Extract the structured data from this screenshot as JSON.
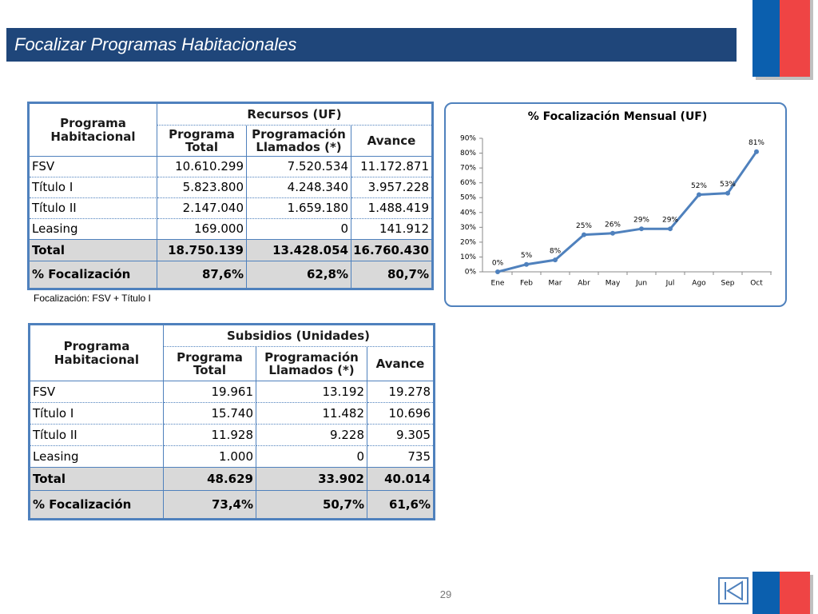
{
  "title": "Focalizar Programas Habitacionales",
  "table1": {
    "stub": "Programa Habitacional",
    "group": "Recursos (UF)",
    "columns": [
      "Programa Total",
      "Programación Llamados (*)",
      "Avance"
    ],
    "rows": [
      [
        "FSV",
        "10.610.299",
        "7.520.534",
        "11.172.871"
      ],
      [
        "Título I",
        "5.823.800",
        "4.248.340",
        "3.957.228"
      ],
      [
        "Título II",
        "2.147.040",
        "1.659.180",
        "1.488.419"
      ],
      [
        "Leasing",
        "169.000",
        "0",
        "141.912"
      ],
      [
        "Total",
        "18.750.139",
        "13.428.054",
        "16.760.430"
      ],
      [
        "% Focalización",
        "87,6%",
        "62,8%",
        "80,7%"
      ]
    ]
  },
  "note": "Focalización: FSV + Título I",
  "table2": {
    "stub": "Programa Habitacional",
    "group": "Subsidios (Unidades)",
    "columns": [
      "Programa Total",
      "Programación Llamados (*)",
      "Avance"
    ],
    "rows": [
      [
        "FSV",
        "19.961",
        "13.192",
        "19.278"
      ],
      [
        "Título I",
        "15.740",
        "11.482",
        "10.696"
      ],
      [
        "Título II",
        "11.928",
        "9.228",
        "9.305"
      ],
      [
        "Leasing",
        "1.000",
        "0",
        "735"
      ],
      [
        "Total",
        "48.629",
        "33.902",
        "40.014"
      ],
      [
        "% Focalización",
        "73,4%",
        "50,7%",
        "61,6%"
      ]
    ]
  },
  "chart_data": {
    "type": "line",
    "title": "% Focalización Mensual (UF)",
    "categories": [
      "Ene",
      "Feb",
      "Mar",
      "Abr",
      "May",
      "Jun",
      "Jul",
      "Ago",
      "Sep",
      "Oct"
    ],
    "values": [
      0,
      5,
      8,
      25,
      26,
      29,
      29,
      52,
      53,
      81
    ],
    "value_labels": [
      "0%",
      "5%",
      "8%",
      "25%",
      "26%",
      "29%",
      "29%",
      "52%",
      "53%",
      "81%"
    ],
    "color": "#4f81bd",
    "ylim": [
      0,
      90
    ],
    "yticks": [
      {
        "value": 0,
        "label": "0%"
      },
      {
        "value": 10,
        "label": "10%"
      },
      {
        "value": 20,
        "label": "20%"
      },
      {
        "value": 30,
        "label": "30%"
      },
      {
        "value": 40,
        "label": "40%"
      },
      {
        "value": 50,
        "label": "50%"
      },
      {
        "value": 60,
        "label": "60%"
      },
      {
        "value": 70,
        "label": "70%"
      },
      {
        "value": 80,
        "label": "80%"
      },
      {
        "value": 90,
        "label": "90%"
      }
    ],
    "grid": false
  },
  "page_number": "29"
}
